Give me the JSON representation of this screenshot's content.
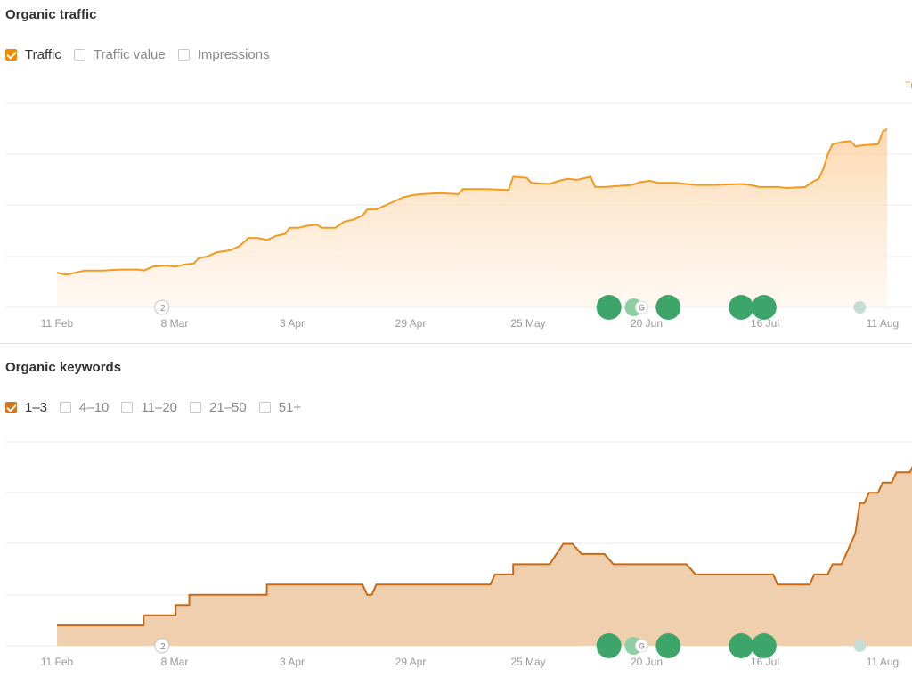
{
  "traffic_section": {
    "title": "Organic traffic",
    "checkboxes": [
      {
        "label": "Traffic",
        "checked": true
      },
      {
        "label": "Traffic value",
        "checked": false
      },
      {
        "label": "Impressions",
        "checked": false
      }
    ],
    "corner_label": "Tr",
    "accent_color": "#f08c00",
    "line_color": "#f39a1f"
  },
  "keywords_section": {
    "title": "Organic keywords",
    "checkboxes": [
      {
        "label": "1–3",
        "checked": true
      },
      {
        "label": "4–10",
        "checked": false
      },
      {
        "label": "11–20",
        "checked": false
      },
      {
        "label": "21–50",
        "checked": false
      },
      {
        "label": "51+",
        "checked": false
      }
    ],
    "accent_color": "#d2771d",
    "line_color": "#c86a14"
  },
  "markers": {
    "update_color": "#3da56a",
    "light_color": "#8fcfa6",
    "faint_color": "#c4ddd5",
    "annotation_count": "2",
    "google_glyph": "G"
  },
  "chart_data": [
    {
      "type": "area",
      "title": "Organic traffic",
      "series_name": "Traffic",
      "x_ticks": [
        "11 Feb",
        "8 Mar",
        "3 Apr",
        "29 Apr",
        "25 May",
        "20 Jun",
        "16 Jul",
        "11 Aug"
      ],
      "x_range_days": [
        0,
        181
      ],
      "y_range": [
        0,
        100
      ],
      "grid": true,
      "points": [
        [
          0,
          17
        ],
        [
          2,
          16
        ],
        [
          4,
          17
        ],
        [
          6,
          18
        ],
        [
          10,
          18
        ],
        [
          14,
          18.5
        ],
        [
          18,
          18.5
        ],
        [
          19,
          18
        ],
        [
          21,
          20
        ],
        [
          24,
          20.5
        ],
        [
          26,
          20
        ],
        [
          28,
          21
        ],
        [
          30,
          21.5
        ],
        [
          31,
          24
        ],
        [
          33,
          25
        ],
        [
          35,
          27
        ],
        [
          38,
          28
        ],
        [
          40,
          30
        ],
        [
          42,
          34
        ],
        [
          44,
          34
        ],
        [
          46,
          33
        ],
        [
          48,
          35
        ],
        [
          50,
          36
        ],
        [
          51,
          39
        ],
        [
          53,
          39
        ],
        [
          55,
          40
        ],
        [
          57,
          40.5
        ],
        [
          58,
          39
        ],
        [
          61,
          39
        ],
        [
          63,
          42
        ],
        [
          65,
          43
        ],
        [
          67,
          45
        ],
        [
          68,
          48
        ],
        [
          70,
          48
        ],
        [
          72,
          50
        ],
        [
          74,
          52
        ],
        [
          76,
          54
        ],
        [
          78,
          55
        ],
        [
          80,
          55.5
        ],
        [
          84,
          56
        ],
        [
          88,
          55.5
        ],
        [
          89,
          58
        ],
        [
          94,
          58
        ],
        [
          99,
          57.5
        ],
        [
          100,
          64
        ],
        [
          103,
          63.5
        ],
        [
          104,
          61
        ],
        [
          108,
          60.5
        ],
        [
          110,
          62
        ],
        [
          112,
          63
        ],
        [
          114,
          62.5
        ],
        [
          116,
          63.5
        ],
        [
          117,
          64
        ],
        [
          118,
          59
        ],
        [
          120,
          59
        ],
        [
          123,
          59.5
        ],
        [
          126,
          60
        ],
        [
          128,
          61.5
        ],
        [
          130,
          62
        ],
        [
          132,
          61
        ],
        [
          136,
          61
        ],
        [
          140,
          60
        ],
        [
          144,
          60
        ],
        [
          150,
          60.5
        ],
        [
          152,
          60
        ],
        [
          154,
          59
        ],
        [
          158,
          59
        ],
        [
          160,
          58.5
        ],
        [
          164,
          59
        ],
        [
          166,
          62
        ],
        [
          167,
          63
        ],
        [
          168,
          68
        ],
        [
          169,
          75
        ],
        [
          170,
          80
        ],
        [
          172,
          81
        ],
        [
          174,
          81.5
        ],
        [
          175,
          79
        ],
        [
          177,
          79.5
        ],
        [
          180,
          80
        ],
        [
          181,
          86
        ],
        [
          182,
          87.5
        ]
      ],
      "markers": [
        {
          "day": 23,
          "kind": "annotation"
        },
        {
          "day": 121,
          "kind": "google-update"
        },
        {
          "day": 127,
          "kind": "google-update-light"
        },
        {
          "day": 134,
          "kind": "google-update"
        },
        {
          "day": 150,
          "kind": "google-update"
        },
        {
          "day": 155,
          "kind": "google-update"
        },
        {
          "day": 176,
          "kind": "faint"
        }
      ]
    },
    {
      "type": "area",
      "title": "Organic keywords",
      "series_name": "1–3",
      "x_ticks": [
        "11 Feb",
        "8 Mar",
        "3 Apr",
        "29 Apr",
        "25 May",
        "20 Jun",
        "16 Jul",
        "11 Aug"
      ],
      "x_range_days": [
        0,
        181
      ],
      "y_range": [
        0,
        100
      ],
      "grid": true,
      "points": [
        [
          0,
          10
        ],
        [
          19,
          10
        ],
        [
          19,
          15
        ],
        [
          26,
          15
        ],
        [
          26,
          20
        ],
        [
          29,
          20
        ],
        [
          29,
          25
        ],
        [
          46,
          25
        ],
        [
          46,
          30
        ],
        [
          67,
          30
        ],
        [
          68,
          25
        ],
        [
          69,
          25
        ],
        [
          70,
          30
        ],
        [
          95,
          30
        ],
        [
          96,
          35
        ],
        [
          100,
          35
        ],
        [
          100,
          40
        ],
        [
          108,
          40
        ],
        [
          111,
          50
        ],
        [
          113,
          50
        ],
        [
          115,
          45
        ],
        [
          120,
          45
        ],
        [
          122,
          40
        ],
        [
          138,
          40
        ],
        [
          140,
          35
        ],
        [
          157,
          35
        ],
        [
          158,
          30
        ],
        [
          165,
          30
        ],
        [
          166,
          35
        ],
        [
          169,
          35
        ],
        [
          170,
          40
        ],
        [
          172,
          40
        ],
        [
          174,
          50
        ],
        [
          175,
          55
        ],
        [
          176,
          70
        ],
        [
          177,
          70
        ],
        [
          178,
          75
        ],
        [
          180,
          75
        ],
        [
          181,
          80
        ],
        [
          183,
          80
        ],
        [
          184,
          85
        ],
        [
          187,
          85
        ],
        [
          188,
          90
        ],
        [
          189,
          90
        ]
      ],
      "markers": [
        {
          "day": 23,
          "kind": "annotation"
        },
        {
          "day": 121,
          "kind": "google-update"
        },
        {
          "day": 127,
          "kind": "google-update-light"
        },
        {
          "day": 134,
          "kind": "google-update"
        },
        {
          "day": 150,
          "kind": "google-update"
        },
        {
          "day": 155,
          "kind": "google-update"
        },
        {
          "day": 176,
          "kind": "faint"
        }
      ]
    }
  ]
}
